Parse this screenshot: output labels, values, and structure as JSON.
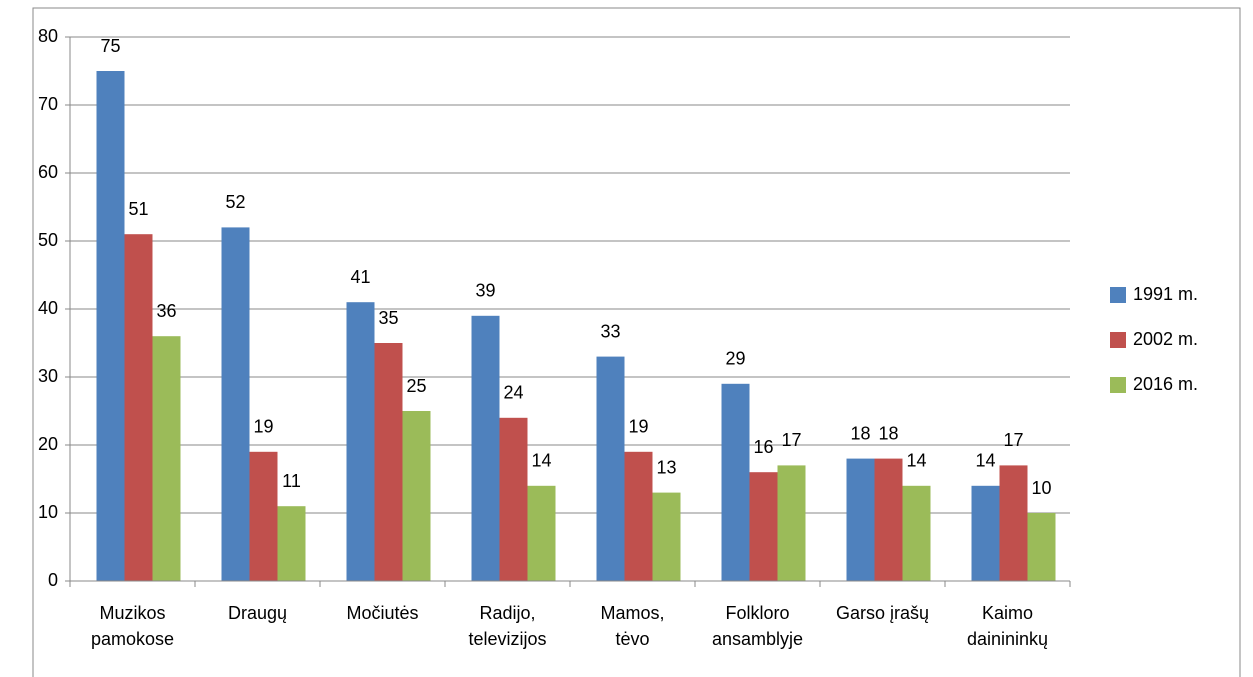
{
  "chart_data": {
    "type": "bar",
    "categories": [
      "Muzikos\npamokose",
      "Draugų",
      "Močiutės",
      "Radijo,\ntelevizijos",
      "Mamos,\ntėvo",
      "Folkloro\nansamblyje",
      "Garso įrašų",
      "Kaimo\ndainininkų"
    ],
    "series": [
      {
        "name": "1991 m.",
        "color": "#4f81bd",
        "values": [
          75,
          52,
          41,
          39,
          33,
          29,
          18,
          14
        ]
      },
      {
        "name": "2002 m.",
        "color": "#c0504d",
        "values": [
          51,
          19,
          35,
          24,
          19,
          16,
          18,
          17
        ]
      },
      {
        "name": "2016 m.",
        "color": "#9bbb59",
        "values": [
          36,
          11,
          25,
          14,
          13,
          17,
          14,
          10
        ]
      }
    ],
    "ylim": [
      0,
      80
    ],
    "yticks": [
      0,
      10,
      20,
      30,
      40,
      50,
      60,
      70,
      80
    ],
    "grid": true,
    "legend": "right"
  }
}
